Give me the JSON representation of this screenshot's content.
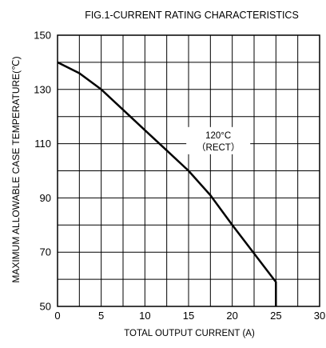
{
  "chart_data": {
    "type": "line",
    "title": "FIG.1-CURRENT RATING CHARACTERISTICS",
    "xlabel": "TOTAL OUTPUT CURRENT (A)",
    "ylabel": "MAXIMUM ALLOWABLE CASE TEMPERATURE(℃)",
    "xlim": [
      0,
      30
    ],
    "ylim": [
      50,
      150
    ],
    "xticks": [
      "0",
      "5",
      "10",
      "15",
      "20",
      "25",
      "30"
    ],
    "yticks": [
      "50",
      "70",
      "90",
      "110",
      "130",
      "150"
    ],
    "grid": true,
    "series": [
      {
        "x": [
          0,
          2.5,
          5,
          7.5,
          10,
          12.5,
          15,
          17.5,
          20,
          22.5,
          25,
          25
        ],
        "y": [
          140,
          136,
          130,
          122.5,
          115,
          107.5,
          100,
          91,
          80,
          69.5,
          59,
          50
        ]
      }
    ],
    "annotations": [
      {
        "line1": "120°C",
        "line2": "（RECT）",
        "x": 18.4,
        "y": 112
      }
    ],
    "colors": {
      "line": "#000000",
      "grid": "#000000"
    }
  }
}
